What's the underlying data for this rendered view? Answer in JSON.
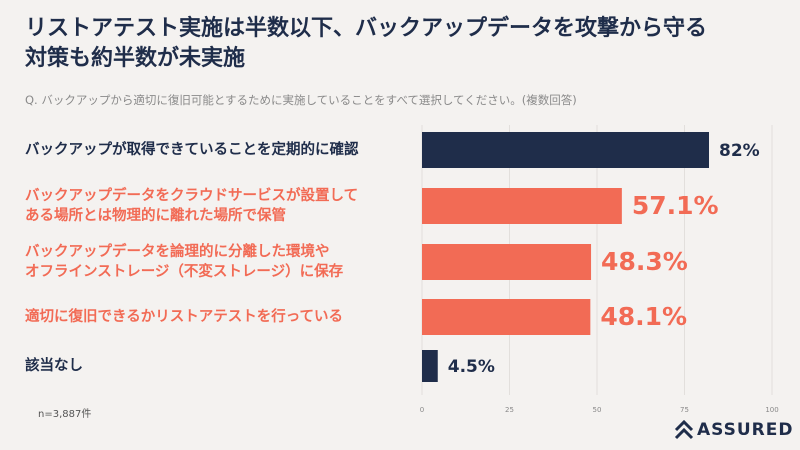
{
  "chart_data": {
    "type": "bar",
    "orientation": "horizontal",
    "title": "リストアテスト実施は半数以下、バックアップデータを攻撃から守る\n対策も約半数が未実施",
    "subtitle": "Q. バックアップから適切に復旧可能とするために実施していることをすべて選択してください。(複数回答)",
    "categories": [
      "バックアップが取得できていることを定期的に確認",
      "バックアップデータをクラウドサービスが設置して\nある場所とは物理的に離れた場所で保管",
      "バックアップデータを論理的に分離した環境や\nオフラインストレージ（不変ストレージ）に保存",
      "適切に復旧できるかリストアテストを行っている",
      "該当なし"
    ],
    "values": [
      82,
      57.1,
      48.3,
      48.1,
      4.5
    ],
    "value_labels": [
      "82%",
      "57.1%",
      "48.3%",
      "48.1%",
      "4.5%"
    ],
    "colors": [
      "#1f2d4a",
      "#f26b55",
      "#f26b55",
      "#f26b55",
      "#1f2d4a"
    ],
    "xlim": [
      0,
      100
    ],
    "xticks": [
      0,
      25,
      50,
      75,
      100
    ],
    "grid": true,
    "note": "n=3,887件",
    "logo": "ASSURED"
  }
}
